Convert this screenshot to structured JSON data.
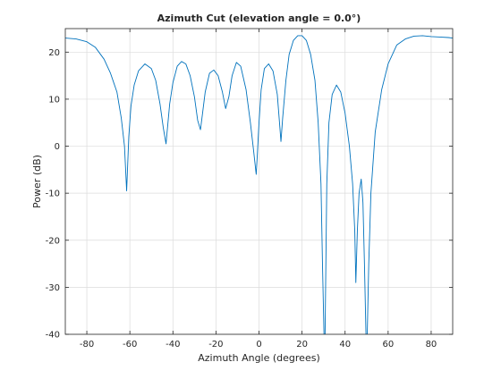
{
  "chart_data": {
    "type": "line",
    "title": "Azimuth Cut (elevation angle = 0.0°)",
    "xlabel": "Azimuth Angle (degrees)",
    "ylabel": "Power (dB)",
    "xlim": [
      -90,
      90
    ],
    "ylim": [
      -40,
      25
    ],
    "xticks": [
      -80,
      -60,
      -40,
      -20,
      0,
      20,
      40,
      60,
      80
    ],
    "yticks": [
      -40,
      -30,
      -20,
      -10,
      0,
      10,
      20
    ],
    "xtick_labels": [
      "-80",
      "-60",
      "-40",
      "-20",
      "0",
      "20",
      "40",
      "60",
      "80"
    ],
    "ytick_labels": [
      "-40",
      "-30",
      "-20",
      "-10",
      "0",
      "10",
      "20"
    ],
    "grid": true,
    "line_color": "#0072BD",
    "series": [
      {
        "x": [
          -90,
          -85,
          -80,
          -76,
          -72,
          -69,
          -66,
          -64,
          -62.5,
          -61.5,
          -60.5,
          -59.5,
          -58,
          -56,
          -53,
          -50,
          -48,
          -46,
          -44.5,
          -43.2,
          -42.5,
          -41.5,
          -40,
          -38,
          -36,
          -34,
          -32,
          -30,
          -28.5,
          -27.2,
          -26.5,
          -25,
          -23,
          -21,
          -19,
          -17,
          -15.5,
          -14,
          -12.5,
          -10.5,
          -8.5,
          -6,
          -4,
          -2.5,
          -1.3,
          -0.8,
          0,
          1,
          2.5,
          4.5,
          6.5,
          8.5,
          9.7,
          10.2,
          11,
          12.5,
          14,
          16,
          18,
          20,
          22,
          24,
          26,
          27.5,
          28.8,
          29.5,
          30.2,
          30.7,
          31.5,
          32.5,
          34,
          36,
          38,
          40,
          42,
          43.5,
          44.5,
          45,
          45.7,
          46.5,
          47.5,
          48.3,
          49,
          49.7,
          50.3,
          51,
          52,
          54,
          57,
          60,
          64,
          68,
          72,
          76,
          80,
          84,
          88,
          90
        ],
        "y": [
          23,
          22.8,
          22.2,
          21,
          18.5,
          15.5,
          11.5,
          6,
          0,
          -9.5,
          2,
          8.5,
          13,
          16,
          17.5,
          16.5,
          14,
          9,
          4,
          0.5,
          4,
          9,
          13.5,
          17,
          18,
          17.5,
          15,
          10.5,
          5.5,
          3.5,
          6,
          11.5,
          15.5,
          16.2,
          15,
          11.5,
          8,
          10.5,
          15,
          17.8,
          17,
          12,
          5,
          -1,
          -6,
          -2,
          5,
          12,
          16.5,
          17.5,
          16,
          11,
          4,
          1,
          6,
          14,
          19.5,
          22.5,
          23.5,
          23.5,
          22.5,
          19.5,
          14,
          5,
          -8,
          -25,
          -40,
          -40,
          -8,
          5,
          11,
          13,
          11.5,
          7,
          0,
          -8,
          -18,
          -29,
          -18,
          -10,
          -7,
          -12,
          -25,
          -40,
          -40,
          -25,
          -10,
          3,
          12,
          17.5,
          21.5,
          22.8,
          23.4,
          23.5,
          23.3,
          23.2,
          23.1,
          23
        ]
      }
    ]
  }
}
